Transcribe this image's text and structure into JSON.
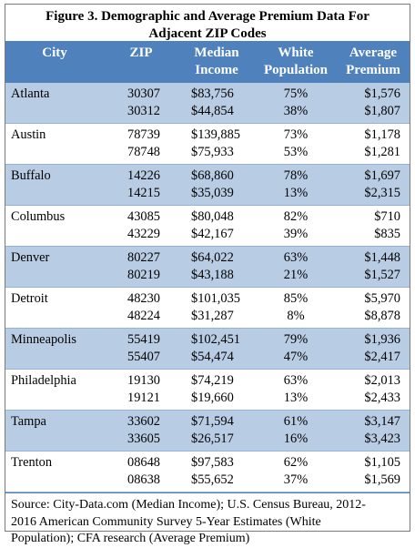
{
  "title": {
    "line1": "Figure 3. Demographic and Average Premium Data For",
    "line2": "Adjacent ZIP Codes"
  },
  "table": {
    "headers": {
      "city": "City",
      "zip": "ZIP",
      "income_line1": "Median",
      "income_line2": "Income",
      "white_line1": "White",
      "white_line2": "Population",
      "premium_line1": "Average",
      "premium_line2": "Premium"
    },
    "rows": [
      {
        "city": "Atlanta",
        "zip": "30307",
        "income": "$83,756",
        "white": "75%",
        "premium": "$1,576"
      },
      {
        "city": "",
        "zip": "30312",
        "income": "$44,854",
        "white": "38%",
        "premium": "$1,807"
      },
      {
        "city": "Austin",
        "zip": "78739",
        "income": "$139,885",
        "white": "73%",
        "premium": "$1,178"
      },
      {
        "city": "",
        "zip": "78748",
        "income": "$75,933",
        "white": "53%",
        "premium": "$1,281"
      },
      {
        "city": "Buffalo",
        "zip": "14226",
        "income": "$68,860",
        "white": "78%",
        "premium": "$1,697"
      },
      {
        "city": "",
        "zip": "14215",
        "income": "$35,039",
        "white": "13%",
        "premium": "$2,315"
      },
      {
        "city": "Columbus",
        "zip": "43085",
        "income": "$80,048",
        "white": "82%",
        "premium": "$710"
      },
      {
        "city": "",
        "zip": "43229",
        "income": "$42,167",
        "white": "39%",
        "premium": "$835"
      },
      {
        "city": "Denver",
        "zip": "80227",
        "income": "$64,022",
        "white": "63%",
        "premium": "$1,448"
      },
      {
        "city": "",
        "zip": "80219",
        "income": "$43,188",
        "white": "21%",
        "premium": "$1,527"
      },
      {
        "city": "Detroit",
        "zip": "48230",
        "income": "$101,035",
        "white": "85%",
        "premium": "$5,970"
      },
      {
        "city": "",
        "zip": "48224",
        "income": "$31,287",
        "white": "8%",
        "premium": "$8,878"
      },
      {
        "city": "Minneapolis",
        "zip": "55419",
        "income": "$102,451",
        "white": "79%",
        "premium": "$1,936"
      },
      {
        "city": "",
        "zip": "55407",
        "income": "$54,474",
        "white": "47%",
        "premium": "$2,417"
      },
      {
        "city": "Philadelphia",
        "zip": "19130",
        "income": "$74,219",
        "white": "63%",
        "premium": "$2,013"
      },
      {
        "city": "",
        "zip": "19121",
        "income": "$19,660",
        "white": "13%",
        "premium": "$2,433"
      },
      {
        "city": "Tampa",
        "zip": "33602",
        "income": "$71,594",
        "white": "61%",
        "premium": "$3,147"
      },
      {
        "city": "",
        "zip": "33605",
        "income": "$26,517",
        "white": "16%",
        "premium": "$3,423"
      },
      {
        "city": "Trenton",
        "zip": "08648",
        "income": "$97,583",
        "white": "62%",
        "premium": "$1,105"
      },
      {
        "city": "",
        "zip": "08638",
        "income": "$55,652",
        "white": "37%",
        "premium": "$1,569"
      }
    ]
  },
  "source": {
    "line1": "Source: City-Data.com (Median Income); U.S. Census Bureau, 2012-",
    "line2": "2016 American Community Survey 5-Year Estimates (White",
    "line3": "Population); CFA research (Average Premium)"
  },
  "colors": {
    "header_bg": "#4f81bd",
    "band_bg": "#b8cce4",
    "header_text": "#ffffff"
  }
}
